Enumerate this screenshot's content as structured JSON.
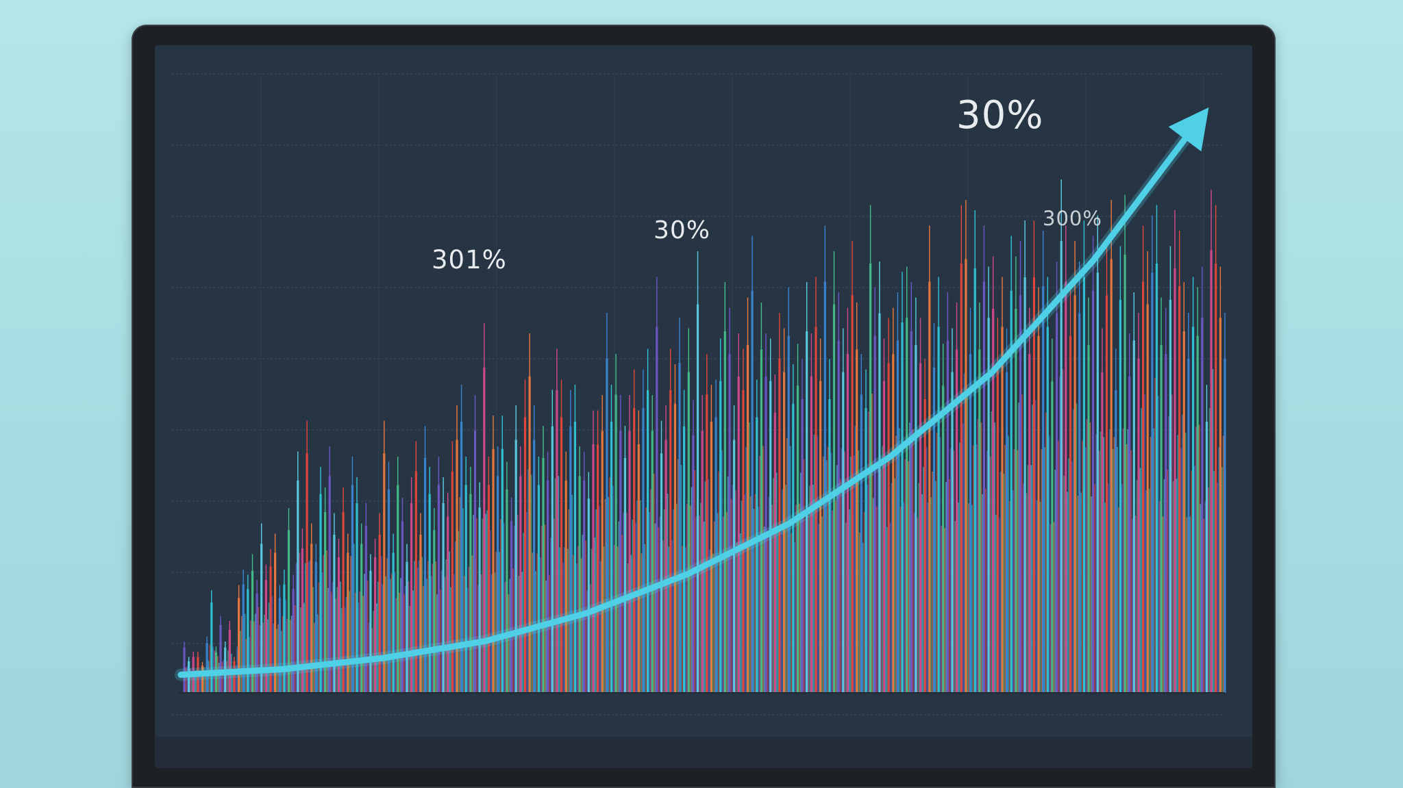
{
  "chart_data": {
    "type": "bar",
    "title": "",
    "xlabel": "",
    "ylabel": "",
    "ylim": [
      0,
      100
    ],
    "grid": true,
    "palette": [
      "#2fc7d8",
      "#e8473b",
      "#6f58c9",
      "#3b86d6",
      "#d6498f",
      "#45c08a",
      "#ef7a3d",
      "#5ccfe6"
    ],
    "annotations": [
      {
        "text": "301%",
        "id": "annotation-1"
      },
      {
        "text": "30%",
        "id": "annotation-2"
      },
      {
        "text": "30%",
        "id": "annotation-3"
      },
      {
        "text": "300%",
        "id": "annotation-4"
      }
    ],
    "trend": {
      "color": "#4fd0e6",
      "points": [
        [
          0,
          2
        ],
        [
          10,
          3
        ],
        [
          20,
          5
        ],
        [
          30,
          8
        ],
        [
          40,
          13
        ],
        [
          50,
          20
        ],
        [
          60,
          29
        ],
        [
          70,
          41
        ],
        [
          80,
          56
        ],
        [
          90,
          76
        ],
        [
          100,
          100
        ]
      ]
    },
    "peaks": [
      [
        6,
        10
      ],
      [
        11,
        7
      ],
      [
        16,
        8
      ],
      [
        21,
        8
      ],
      [
        26,
        6
      ],
      [
        31,
        11
      ],
      [
        36,
        20
      ],
      [
        41,
        9
      ],
      [
        46,
        15
      ],
      [
        51,
        10
      ],
      [
        56,
        14
      ],
      [
        61,
        7
      ],
      [
        66,
        21
      ],
      [
        71,
        24
      ],
      [
        76,
        23
      ],
      [
        81,
        27
      ],
      [
        86,
        22
      ],
      [
        91,
        33
      ],
      [
        96,
        25
      ],
      [
        101,
        28
      ],
      [
        106,
        31
      ],
      [
        111,
        21
      ],
      [
        116,
        24
      ],
      [
        121,
        36
      ],
      [
        126,
        23
      ],
      [
        131,
        47
      ],
      [
        136,
        32
      ],
      [
        141,
        53
      ],
      [
        146,
        33
      ],
      [
        151,
        29
      ],
      [
        156,
        44
      ],
      [
        161,
        40
      ],
      [
        166,
        48
      ],
      [
        171,
        35
      ],
      [
        176,
        30
      ],
      [
        181,
        40
      ],
      [
        186,
        31
      ],
      [
        191,
        46
      ],
      [
        196,
        42
      ],
      [
        201,
        33
      ],
      [
        206,
        37
      ],
      [
        211,
        27
      ],
      [
        216,
        30
      ],
      [
        221,
        35
      ],
      [
        226,
        53
      ],
      [
        231,
        45
      ],
      [
        236,
        31
      ],
      [
        241,
        46
      ],
      [
        246,
        38
      ],
      [
        251,
        29
      ],
      [
        256,
        42
      ],
      [
        261,
        49
      ],
      [
        266,
        35
      ],
      [
        271,
        52
      ],
      [
        276,
        44
      ],
      [
        281,
        36
      ],
      [
        286,
        46
      ],
      [
        291,
        42
      ],
      [
        296,
        39
      ],
      [
        301,
        49
      ],
      [
        306,
        56
      ],
      [
        311,
        60
      ],
      [
        316,
        46
      ],
      [
        321,
        44
      ],
      [
        326,
        58
      ],
      [
        331,
        41
      ],
      [
        336,
        72
      ],
      [
        341,
        46
      ],
      [
        346,
        54
      ],
      [
        351,
        48
      ],
      [
        356,
        54
      ],
      [
        361,
        45
      ],
      [
        366,
        38
      ],
      [
        371,
        56
      ],
      [
        376,
        48
      ],
      [
        381,
        61
      ],
      [
        386,
        70
      ],
      [
        391,
        56
      ],
      [
        396,
        46
      ],
      [
        401,
        52
      ],
      [
        406,
        47
      ],
      [
        411,
        59
      ],
      [
        416,
        67
      ],
      [
        421,
        61
      ],
      [
        426,
        47
      ],
      [
        431,
        59
      ],
      [
        436,
        60
      ],
      [
        441,
        48
      ],
      [
        446,
        47
      ],
      [
        451,
        43
      ],
      [
        456,
        55
      ],
      [
        461,
        55
      ],
      [
        466,
        58
      ],
      [
        471,
        74
      ],
      [
        476,
        60
      ],
      [
        481,
        66
      ],
      [
        486,
        58
      ],
      [
        491,
        52
      ],
      [
        496,
        58
      ],
      [
        501,
        63
      ],
      [
        506,
        55
      ],
      [
        511,
        63
      ],
      [
        516,
        67
      ],
      [
        521,
        58
      ],
      [
        526,
        81
      ],
      [
        531,
        53
      ],
      [
        536,
        56
      ],
      [
        541,
        67
      ],
      [
        546,
        64
      ],
      [
        551,
        73
      ],
      [
        556,
        59
      ],
      [
        561,
        71
      ],
      [
        566,
        57
      ],
      [
        571,
        86
      ],
      [
        576,
        58
      ],
      [
        581,
        66
      ],
      [
        586,
        60
      ],
      [
        591,
        61
      ],
      [
        596,
        69
      ],
      [
        601,
        80
      ],
      [
        606,
        75
      ],
      [
        611,
        56
      ],
      [
        616,
        70
      ],
      [
        621,
        67
      ],
      [
        626,
        77
      ],
      [
        631,
        89
      ],
      [
        636,
        61
      ],
      [
        641,
        76
      ],
      [
        646,
        70
      ],
      [
        651,
        69
      ],
      [
        656,
        62
      ],
      [
        661,
        74
      ],
      [
        666,
        71
      ],
      [
        671,
        79
      ],
      [
        676,
        64
      ],
      [
        681,
        68
      ],
      [
        686,
        65
      ],
      [
        691,
        80
      ],
      [
        696,
        70
      ],
      [
        701,
        81
      ],
      [
        706,
        69
      ],
      [
        711,
        91
      ],
      [
        716,
        65
      ],
      [
        721,
        86
      ],
      [
        726,
        78
      ],
      [
        731,
        71
      ],
      [
        736,
        75
      ],
      [
        741,
        88
      ],
      [
        746,
        76
      ],
      [
        751,
        66
      ],
      [
        756,
        63
      ],
      [
        761,
        95
      ],
      [
        766,
        79
      ],
      [
        771,
        84
      ],
      [
        776,
        69
      ],
      [
        781,
        73
      ],
      [
        786,
        75
      ],
      [
        791,
        78
      ],
      [
        796,
        82
      ],
      [
        801,
        83
      ],
      [
        806,
        80
      ],
      [
        811,
        77
      ],
      [
        816,
        73
      ],
      [
        821,
        65
      ],
      [
        826,
        91
      ],
      [
        831,
        72
      ],
      [
        836,
        81
      ],
      [
        841,
        68
      ],
      [
        846,
        78
      ],
      [
        851,
        71
      ],
      [
        856,
        76
      ],
      [
        861,
        95
      ],
      [
        866,
        96
      ],
      [
        871,
        75
      ],
      [
        876,
        94
      ],
      [
        881,
        76
      ],
      [
        886,
        91
      ],
      [
        891,
        83
      ],
      [
        896,
        85
      ],
      [
        901,
        73
      ],
      [
        906,
        81
      ],
      [
        911,
        71
      ],
      [
        916,
        89
      ],
      [
        921,
        85
      ],
      [
        926,
        88
      ],
      [
        931,
        92
      ],
      [
        936,
        75
      ],
      [
        941,
        92
      ],
      [
        946,
        79
      ],
      [
        951,
        90
      ],
      [
        956,
        81
      ],
      [
        961,
        69
      ],
      [
        966,
        84
      ],
      [
        971,
        100
      ],
      [
        976,
        91
      ],
      [
        981,
        79
      ],
      [
        986,
        88
      ],
      [
        991,
        84
      ],
      [
        996,
        92
      ],
      [
        1001,
        77
      ],
      [
        1006,
        89
      ],
      [
        1011,
        93
      ],
      [
        1016,
        71
      ],
      [
        1021,
        88
      ],
      [
        1026,
        96
      ],
      [
        1031,
        67
      ],
      [
        1036,
        87
      ],
      [
        1041,
        97
      ],
      [
        1046,
        70
      ],
      [
        1051,
        78
      ],
      [
        1056,
        74
      ],
      [
        1061,
        91
      ],
      [
        1066,
        86
      ],
      [
        1071,
        93
      ],
      [
        1076,
        95
      ],
      [
        1081,
        77
      ],
      [
        1086,
        75
      ],
      [
        1091,
        87
      ],
      [
        1096,
        94
      ],
      [
        1101,
        90
      ],
      [
        1106,
        80
      ],
      [
        1111,
        74
      ],
      [
        1116,
        81
      ],
      [
        1121,
        79
      ],
      [
        1126,
        83
      ],
      [
        1131,
        60
      ],
      [
        1136,
        98
      ],
      [
        1141,
        95
      ],
      [
        1146,
        83
      ],
      [
        1151,
        74
      ]
    ]
  }
}
